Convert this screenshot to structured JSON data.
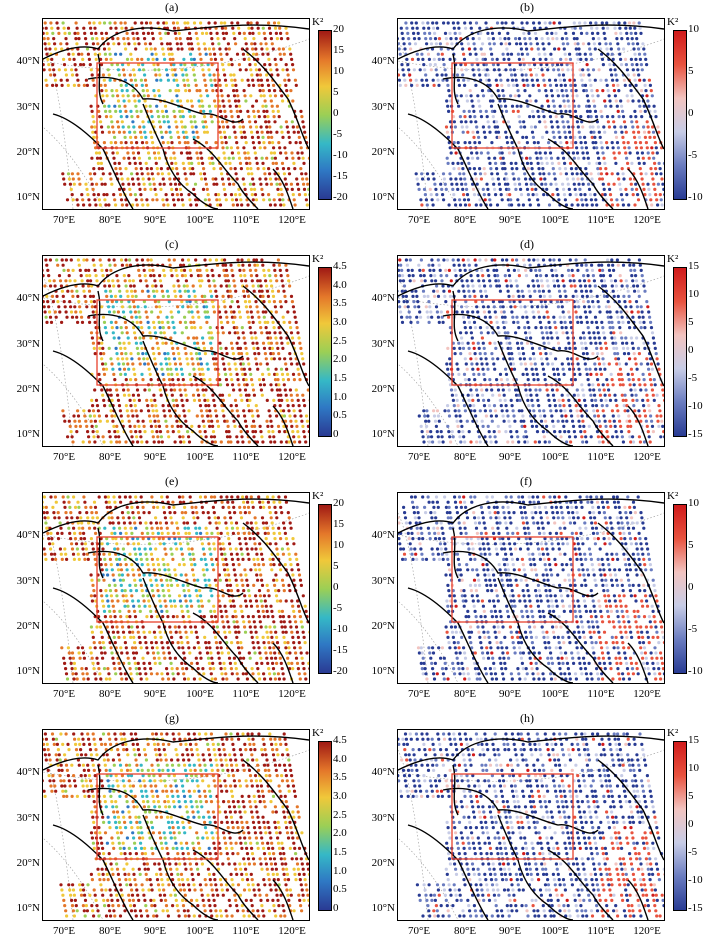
{
  "panels": [
    {
      "label": "(a)",
      "scheme": "rainbow",
      "unit": "K²",
      "ticks": [
        "20",
        "15",
        "10",
        "5",
        "0",
        "-5",
        "-10",
        "-15",
        "-20"
      ],
      "seed": 11
    },
    {
      "label": "(b)",
      "scheme": "diverging",
      "unit": "K²",
      "ticks": [
        "10",
        "5",
        "0",
        "-5",
        "-10"
      ],
      "seed": 23
    },
    {
      "label": "(c)",
      "scheme": "rainbow",
      "unit": "K²",
      "ticks": [
        "4.5",
        "4.0",
        "3.5",
        "3.0",
        "2.5",
        "2.0",
        "1.5",
        "1.0",
        "0.5",
        "0"
      ],
      "seed": 37
    },
    {
      "label": "(d)",
      "scheme": "diverging",
      "unit": "K²",
      "ticks": [
        "15",
        "10",
        "5",
        "0",
        "-5",
        "-10",
        "-15"
      ],
      "seed": 41
    },
    {
      "label": "(e)",
      "scheme": "rainbow",
      "unit": "K²",
      "ticks": [
        "20",
        "15",
        "10",
        "5",
        "0",
        "-5",
        "-10",
        "-15",
        "-20"
      ],
      "seed": 53
    },
    {
      "label": "(f)",
      "scheme": "diverging",
      "unit": "K²",
      "ticks": [
        "10",
        "5",
        "0",
        "-5",
        "-10"
      ],
      "seed": 67
    },
    {
      "label": "(g)",
      "scheme": "rainbow",
      "unit": "K²",
      "ticks": [
        "4.5",
        "4.0",
        "3.5",
        "3.0",
        "2.5",
        "2.0",
        "1.5",
        "1.0",
        "0.5",
        "0"
      ],
      "seed": 71
    },
    {
      "label": "(h)",
      "scheme": "diverging",
      "unit": "K²",
      "ticks": [
        "15",
        "10",
        "5",
        "0",
        "-5",
        "-10",
        "-15"
      ],
      "seed": 83
    }
  ],
  "lat_labels": [
    "40°N",
    "30°N",
    "20°N",
    "10°N"
  ],
  "lon_labels": [
    "70°E",
    "80°E",
    "90°E",
    "100°E",
    "110°E",
    "120°E"
  ],
  "colors": {
    "box": "#e8412c",
    "rainbow": [
      "#2a3a93",
      "#2f78c4",
      "#35b8c6",
      "#9bcf55",
      "#f0c83a",
      "#e4772a",
      "#a01a14"
    ],
    "diverging": [
      "#283b93",
      "#6a7cc0",
      "#c7cce6",
      "#f2c4c0",
      "#e8533f",
      "#d01b1b"
    ]
  }
}
